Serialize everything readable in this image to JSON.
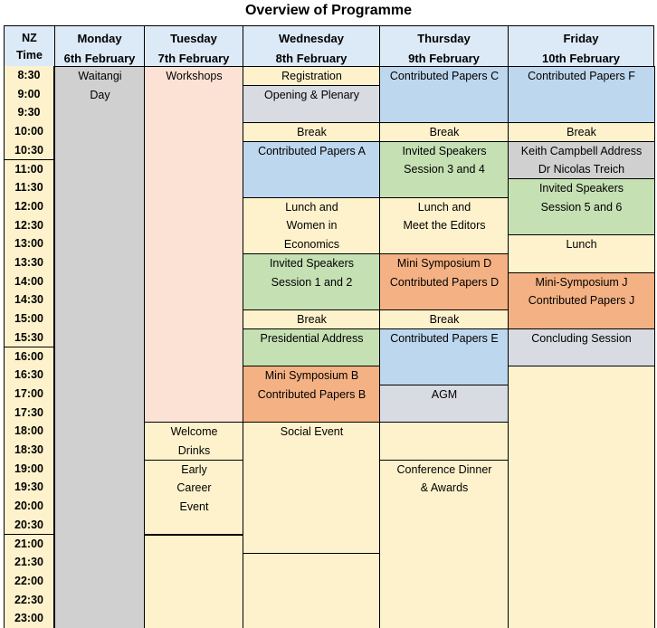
{
  "title": "Overview of Programme",
  "header": {
    "time": [
      "NZ",
      "Time"
    ],
    "days": [
      {
        "name": "Monday",
        "date": "6th February"
      },
      {
        "name": "Tuesday",
        "date": "7th February"
      },
      {
        "name": "Wednesday",
        "date": "8th February"
      },
      {
        "name": "Thursday",
        "date": "9th February"
      },
      {
        "name": "Friday",
        "date": "10th February"
      }
    ]
  },
  "times": [
    "8:30",
    "9:00",
    "9:30",
    "10:00",
    "10:30",
    "11:00",
    "11:30",
    "12:00",
    "12:30",
    "13:00",
    "13:30",
    "14:00",
    "14:30",
    "15:00",
    "15:30",
    "16:00",
    "16:30",
    "17:00",
    "17:30",
    "18:00",
    "18:30",
    "19:00",
    "19:30",
    "20:00",
    "20:30",
    "21:00",
    "21:30",
    "22:00",
    "22:30",
    "23:00"
  ],
  "colors": {
    "header": "#dce9f7",
    "cream": "#fef2cc",
    "grey": "#d0d0d0",
    "light_grey": "#d8dbe2",
    "peach_light": "#fbe2d5",
    "blue": "#bdd7ee",
    "green": "#c5e0b3",
    "orange": "#f4b183"
  },
  "events": {
    "monday": [
      {
        "lines": [
          "Waitangi",
          "Day"
        ],
        "color": "#d0d0d0"
      }
    ],
    "tuesday": [
      {
        "lines": [
          "Workshops"
        ],
        "color": "#fbe2d5"
      },
      {
        "lines": [
          "Welcome",
          "Drinks"
        ],
        "color": "#fef2cc"
      },
      {
        "lines": [
          "Early",
          "Career",
          "Event"
        ],
        "color": "#fef2cc"
      },
      {
        "lines": [
          ""
        ],
        "color": "#fef2cc"
      }
    ],
    "wednesday": [
      {
        "lines": [
          "Registration"
        ],
        "color": "#fef2cc"
      },
      {
        "lines": [
          "Opening & Plenary"
        ],
        "color": "#d8dbe2"
      },
      {
        "lines": [
          "Break"
        ],
        "color": "#fef2cc"
      },
      {
        "lines": [
          "Contributed Papers A"
        ],
        "color": "#bdd7ee"
      },
      {
        "lines": [
          "Lunch and",
          "Women in",
          "Economics"
        ],
        "color": "#fef2cc"
      },
      {
        "lines": [
          "Invited Speakers",
          "Session 1 and 2"
        ],
        "color": "#c5e0b3"
      },
      {
        "lines": [
          "Break"
        ],
        "color": "#fef2cc"
      },
      {
        "lines": [
          "Presidential Address"
        ],
        "color": "#c5e0b3"
      },
      {
        "lines": [
          "Mini Symposium B",
          "Contributed Papers B"
        ],
        "color": "#f4b183"
      },
      {
        "lines": [
          "Social Event"
        ],
        "color": "#fef2cc"
      },
      {
        "lines": [
          ""
        ],
        "color": "#fef2cc"
      }
    ],
    "thursday": [
      {
        "lines": [
          "Contributed Papers C"
        ],
        "color": "#bdd7ee"
      },
      {
        "lines": [
          "Break"
        ],
        "color": "#fef2cc"
      },
      {
        "lines": [
          "Invited Speakers",
          "Session 3 and 4"
        ],
        "color": "#c5e0b3"
      },
      {
        "lines": [
          "Lunch and",
          "Meet the Editors"
        ],
        "color": "#fef2cc"
      },
      {
        "lines": [
          "Mini Symposium D",
          "Contributed Papers D"
        ],
        "color": "#f4b183"
      },
      {
        "lines": [
          "Break"
        ],
        "color": "#fef2cc"
      },
      {
        "lines": [
          "Contributed Papers E"
        ],
        "color": "#bdd7ee"
      },
      {
        "lines": [
          "AGM"
        ],
        "color": "#d8dbe2"
      },
      {
        "lines": [
          ""
        ],
        "color": "#fef2cc"
      },
      {
        "lines": [
          "Conference Dinner",
          "& Awards"
        ],
        "color": "#fef2cc"
      }
    ],
    "friday": [
      {
        "lines": [
          "Contributed Papers F"
        ],
        "color": "#bdd7ee"
      },
      {
        "lines": [
          "Break"
        ],
        "color": "#fef2cc"
      },
      {
        "lines": [
          "Keith Campbell Address",
          "Dr Nicolas Treich"
        ],
        "color": "#d0d0d0"
      },
      {
        "lines": [
          "Invited Speakers",
          "Session 5 and 6"
        ],
        "color": "#c5e0b3"
      },
      {
        "lines": [
          "Lunch"
        ],
        "color": "#fef2cc"
      },
      {
        "lines": [
          "Mini-Symposium J",
          "Contributed Papers J"
        ],
        "color": "#f4b183"
      },
      {
        "lines": [
          "Concluding Session"
        ],
        "color": "#d8dbe2"
      },
      {
        "lines": [
          ""
        ],
        "color": "#fef2cc"
      }
    ]
  }
}
